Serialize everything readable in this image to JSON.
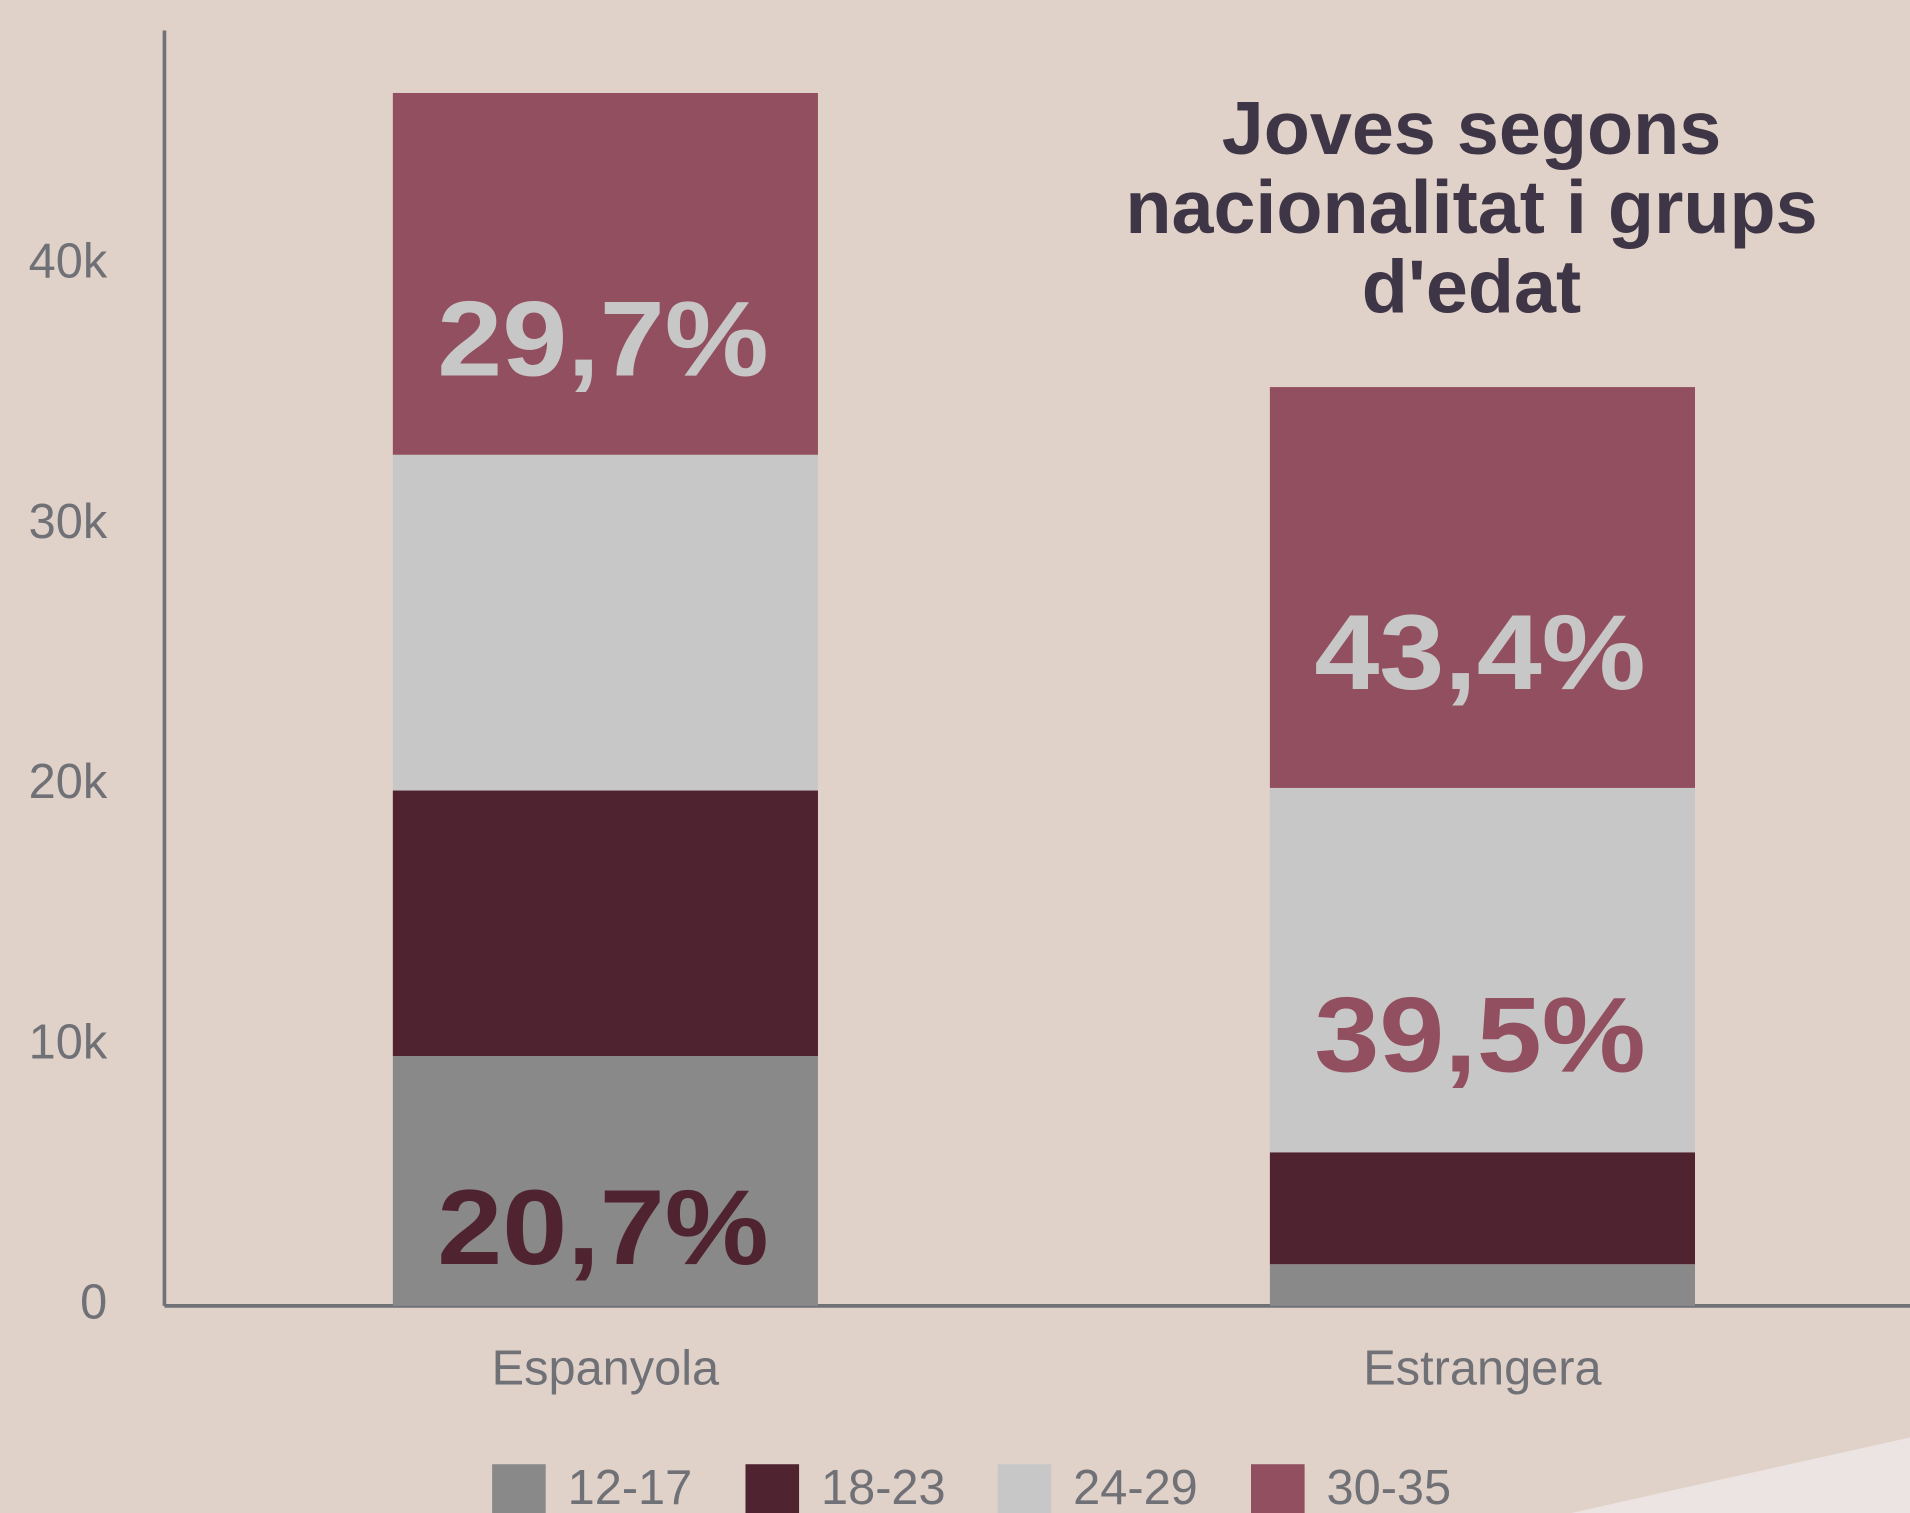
{
  "chart_data": {
    "type": "stacked_bar",
    "title": [
      "Joves segons",
      "nacionalitat i grups",
      "d'edat"
    ],
    "categories": [
      "Espanyola",
      "Estrangera"
    ],
    "series": [
      {
        "name": "12-17",
        "color": "#898989",
        "values": [
          9600,
          1600
        ]
      },
      {
        "name": "18-23",
        "color": "#4f2330",
        "values": [
          10200,
          4300
        ]
      },
      {
        "name": "24-29",
        "color": "#c8c7c7",
        "values": [
          12900,
          14000
        ]
      },
      {
        "name": "30-35",
        "color": "#914f5f",
        "values": [
          13900,
          15400
        ]
      }
    ],
    "annotations": [
      {
        "text": "29,7%",
        "category": "Espanyola",
        "series": "30-35",
        "color": "#c8c7c7"
      },
      {
        "text": "20,7%",
        "category": "Espanyola",
        "series": "12-17",
        "color": "#4f2330"
      },
      {
        "text": "43,4%",
        "category": "Estrangera",
        "series": "30-35",
        "color": "#c8c7c7"
      },
      {
        "text": "39,5%",
        "category": "Estrangera",
        "series": "24-29",
        "color": "#914f5f"
      }
    ],
    "ylim": [
      0,
      49000
    ],
    "yticks": [
      0,
      {
        "value": 10000,
        "label": "10k"
      },
      {
        "value": 20000,
        "label": "20k"
      },
      {
        "value": 30000,
        "label": "30k"
      },
      {
        "value": 40000,
        "label": "40k"
      }
    ],
    "grid": false,
    "legend": "bottom"
  }
}
